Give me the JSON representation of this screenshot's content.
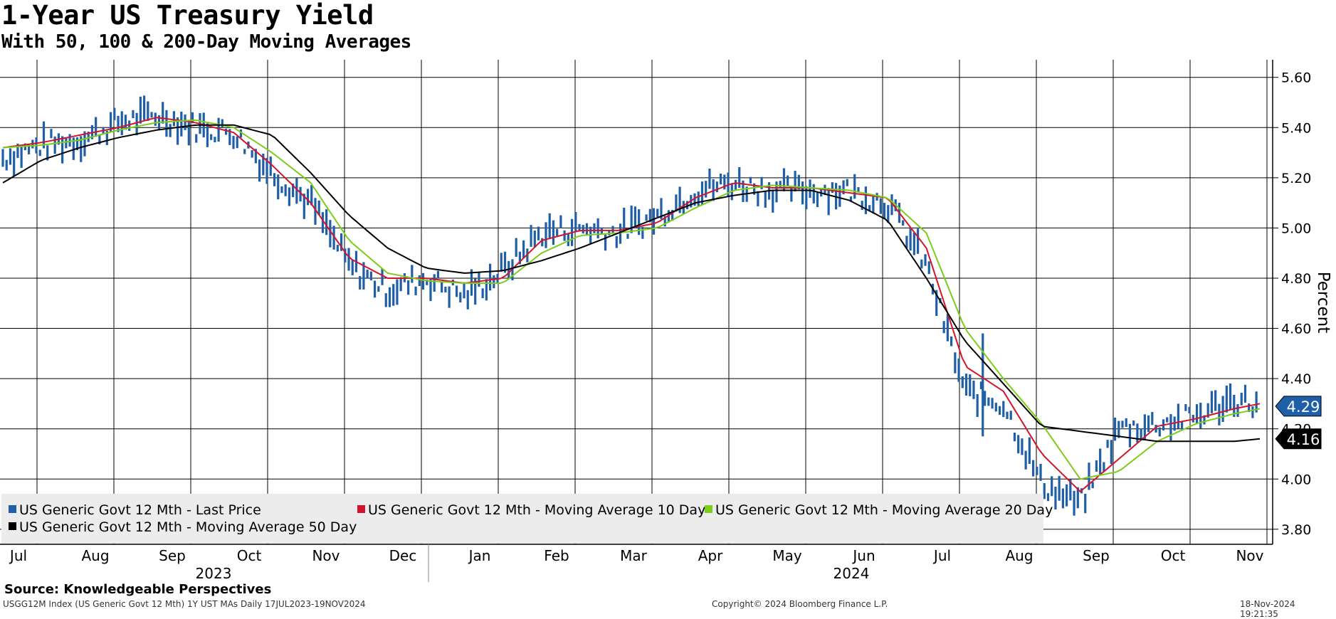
{
  "header": {
    "title": "1-Year US Treasury Yield",
    "subtitle": "With 50, 100 & 200-Day Moving Averages"
  },
  "footer": {
    "source": "Source: Knowledgeable Perspectives",
    "index_info": "USGG12M Index (US Generic Govt 12 Mth) 1Y UST MAs  Daily 17JUL2023-19NOV2024",
    "copyright": "Copyright© 2024 Bloomberg Finance L.P.",
    "timestamp": "18-Nov-2024 19:21:35"
  },
  "legend": {
    "items": [
      {
        "label": "US Generic Govt 12 Mth - Last Price",
        "color": "#1f5fa8"
      },
      {
        "label": "US Generic Govt 12 Mth - Moving Average 10 Day",
        "color": "#d2142d"
      },
      {
        "label": "US Generic Govt 12 Mth - Moving Average 20 Day",
        "color": "#7ccd1a"
      },
      {
        "label": "US Generic Govt 12 Mth - Moving Average 50 Day",
        "color": "#000000"
      }
    ]
  },
  "chart_data": {
    "type": "line",
    "ylabel": "Percent",
    "ylim": [
      3.74,
      5.67
    ],
    "y_ticks": [
      "3.80",
      "4.00",
      "4.20",
      "4.40",
      "4.60",
      "4.80",
      "5.00",
      "5.20",
      "5.40",
      "5.60"
    ],
    "x_axis": {
      "months": [
        "Jul",
        "Aug",
        "Sep",
        "Oct",
        "Nov",
        "Dec",
        "Jan",
        "Feb",
        "Mar",
        "Apr",
        "May",
        "Jun",
        "Jul",
        "Aug",
        "Sep",
        "Oct",
        "Nov"
      ],
      "years": [
        "2023",
        "2024"
      ]
    },
    "grid": true,
    "last_value_labels": [
      {
        "value": "4.29",
        "color": "#1f5fa8"
      },
      {
        "value": "4.16",
        "color": "#000000"
      }
    ],
    "series": [
      {
        "name": "US Generic Govt 12 Mth - Last Price",
        "style": "daily range bars",
        "color": "#1f5fa8",
        "x_days": [
          0,
          15,
          30,
          45,
          60,
          75,
          90,
          105,
          120,
          135,
          150,
          165,
          180,
          195,
          210,
          225,
          240,
          255,
          270,
          285,
          300,
          315,
          330,
          345,
          360,
          375,
          390,
          405,
          420,
          435,
          450,
          465,
          480,
          490
        ],
        "values": [
          5.28,
          5.33,
          5.35,
          5.42,
          5.45,
          5.4,
          5.38,
          5.22,
          5.1,
          4.85,
          4.75,
          4.8,
          4.73,
          4.83,
          4.98,
          5.0,
          4.98,
          5.05,
          5.15,
          5.18,
          5.15,
          5.15,
          5.15,
          5.1,
          4.85,
          4.35,
          4.3,
          3.98,
          3.9,
          4.2,
          4.22,
          4.25,
          4.32,
          4.29
        ]
      },
      {
        "name": "US Generic Govt 12 Mth - Moving Average 10 Day",
        "color": "#d2142d",
        "x_days": [
          0,
          15,
          30,
          45,
          60,
          75,
          90,
          105,
          120,
          135,
          150,
          165,
          180,
          195,
          210,
          225,
          240,
          255,
          270,
          285,
          300,
          315,
          330,
          345,
          360,
          375,
          390,
          405,
          420,
          435,
          450,
          465,
          480,
          490
        ],
        "values": [
          5.32,
          5.34,
          5.37,
          5.4,
          5.44,
          5.42,
          5.38,
          5.25,
          5.1,
          4.88,
          4.8,
          4.8,
          4.78,
          4.8,
          4.95,
          4.99,
          4.99,
          5.02,
          5.12,
          5.18,
          5.16,
          5.16,
          5.14,
          5.12,
          4.92,
          4.45,
          4.35,
          4.1,
          3.95,
          4.08,
          4.21,
          4.24,
          4.28,
          4.3
        ]
      },
      {
        "name": "US Generic Govt 12 Mth - Moving Average 20 Day",
        "color": "#7ccd1a",
        "x_days": [
          0,
          15,
          30,
          45,
          60,
          75,
          90,
          105,
          120,
          135,
          150,
          165,
          180,
          195,
          210,
          225,
          240,
          255,
          270,
          285,
          300,
          315,
          330,
          345,
          360,
          375,
          390,
          405,
          420,
          435,
          450,
          465,
          480,
          490
        ],
        "values": [
          5.32,
          5.33,
          5.35,
          5.39,
          5.42,
          5.43,
          5.4,
          5.3,
          5.18,
          4.95,
          4.82,
          4.79,
          4.78,
          4.78,
          4.9,
          4.97,
          4.98,
          5.0,
          5.08,
          5.15,
          5.17,
          5.16,
          5.15,
          5.12,
          4.98,
          4.6,
          4.4,
          4.22,
          4.0,
          4.03,
          4.15,
          4.22,
          4.26,
          4.28
        ]
      },
      {
        "name": "US Generic Govt 12 Mth - Moving Average 50 Day",
        "color": "#000000",
        "x_days": [
          0,
          15,
          30,
          45,
          60,
          75,
          90,
          105,
          120,
          135,
          150,
          165,
          180,
          195,
          210,
          225,
          240,
          255,
          270,
          285,
          300,
          315,
          330,
          345,
          360,
          375,
          390,
          405,
          420,
          435,
          450,
          465,
          480,
          490
        ],
        "values": [
          5.18,
          5.27,
          5.32,
          5.36,
          5.39,
          5.41,
          5.41,
          5.37,
          5.22,
          5.05,
          4.92,
          4.84,
          4.82,
          4.83,
          4.87,
          4.92,
          4.98,
          5.04,
          5.1,
          5.13,
          5.15,
          5.15,
          5.11,
          5.03,
          4.8,
          4.55,
          4.38,
          4.21,
          4.19,
          4.17,
          4.15,
          4.15,
          4.15,
          4.16
        ]
      }
    ]
  }
}
